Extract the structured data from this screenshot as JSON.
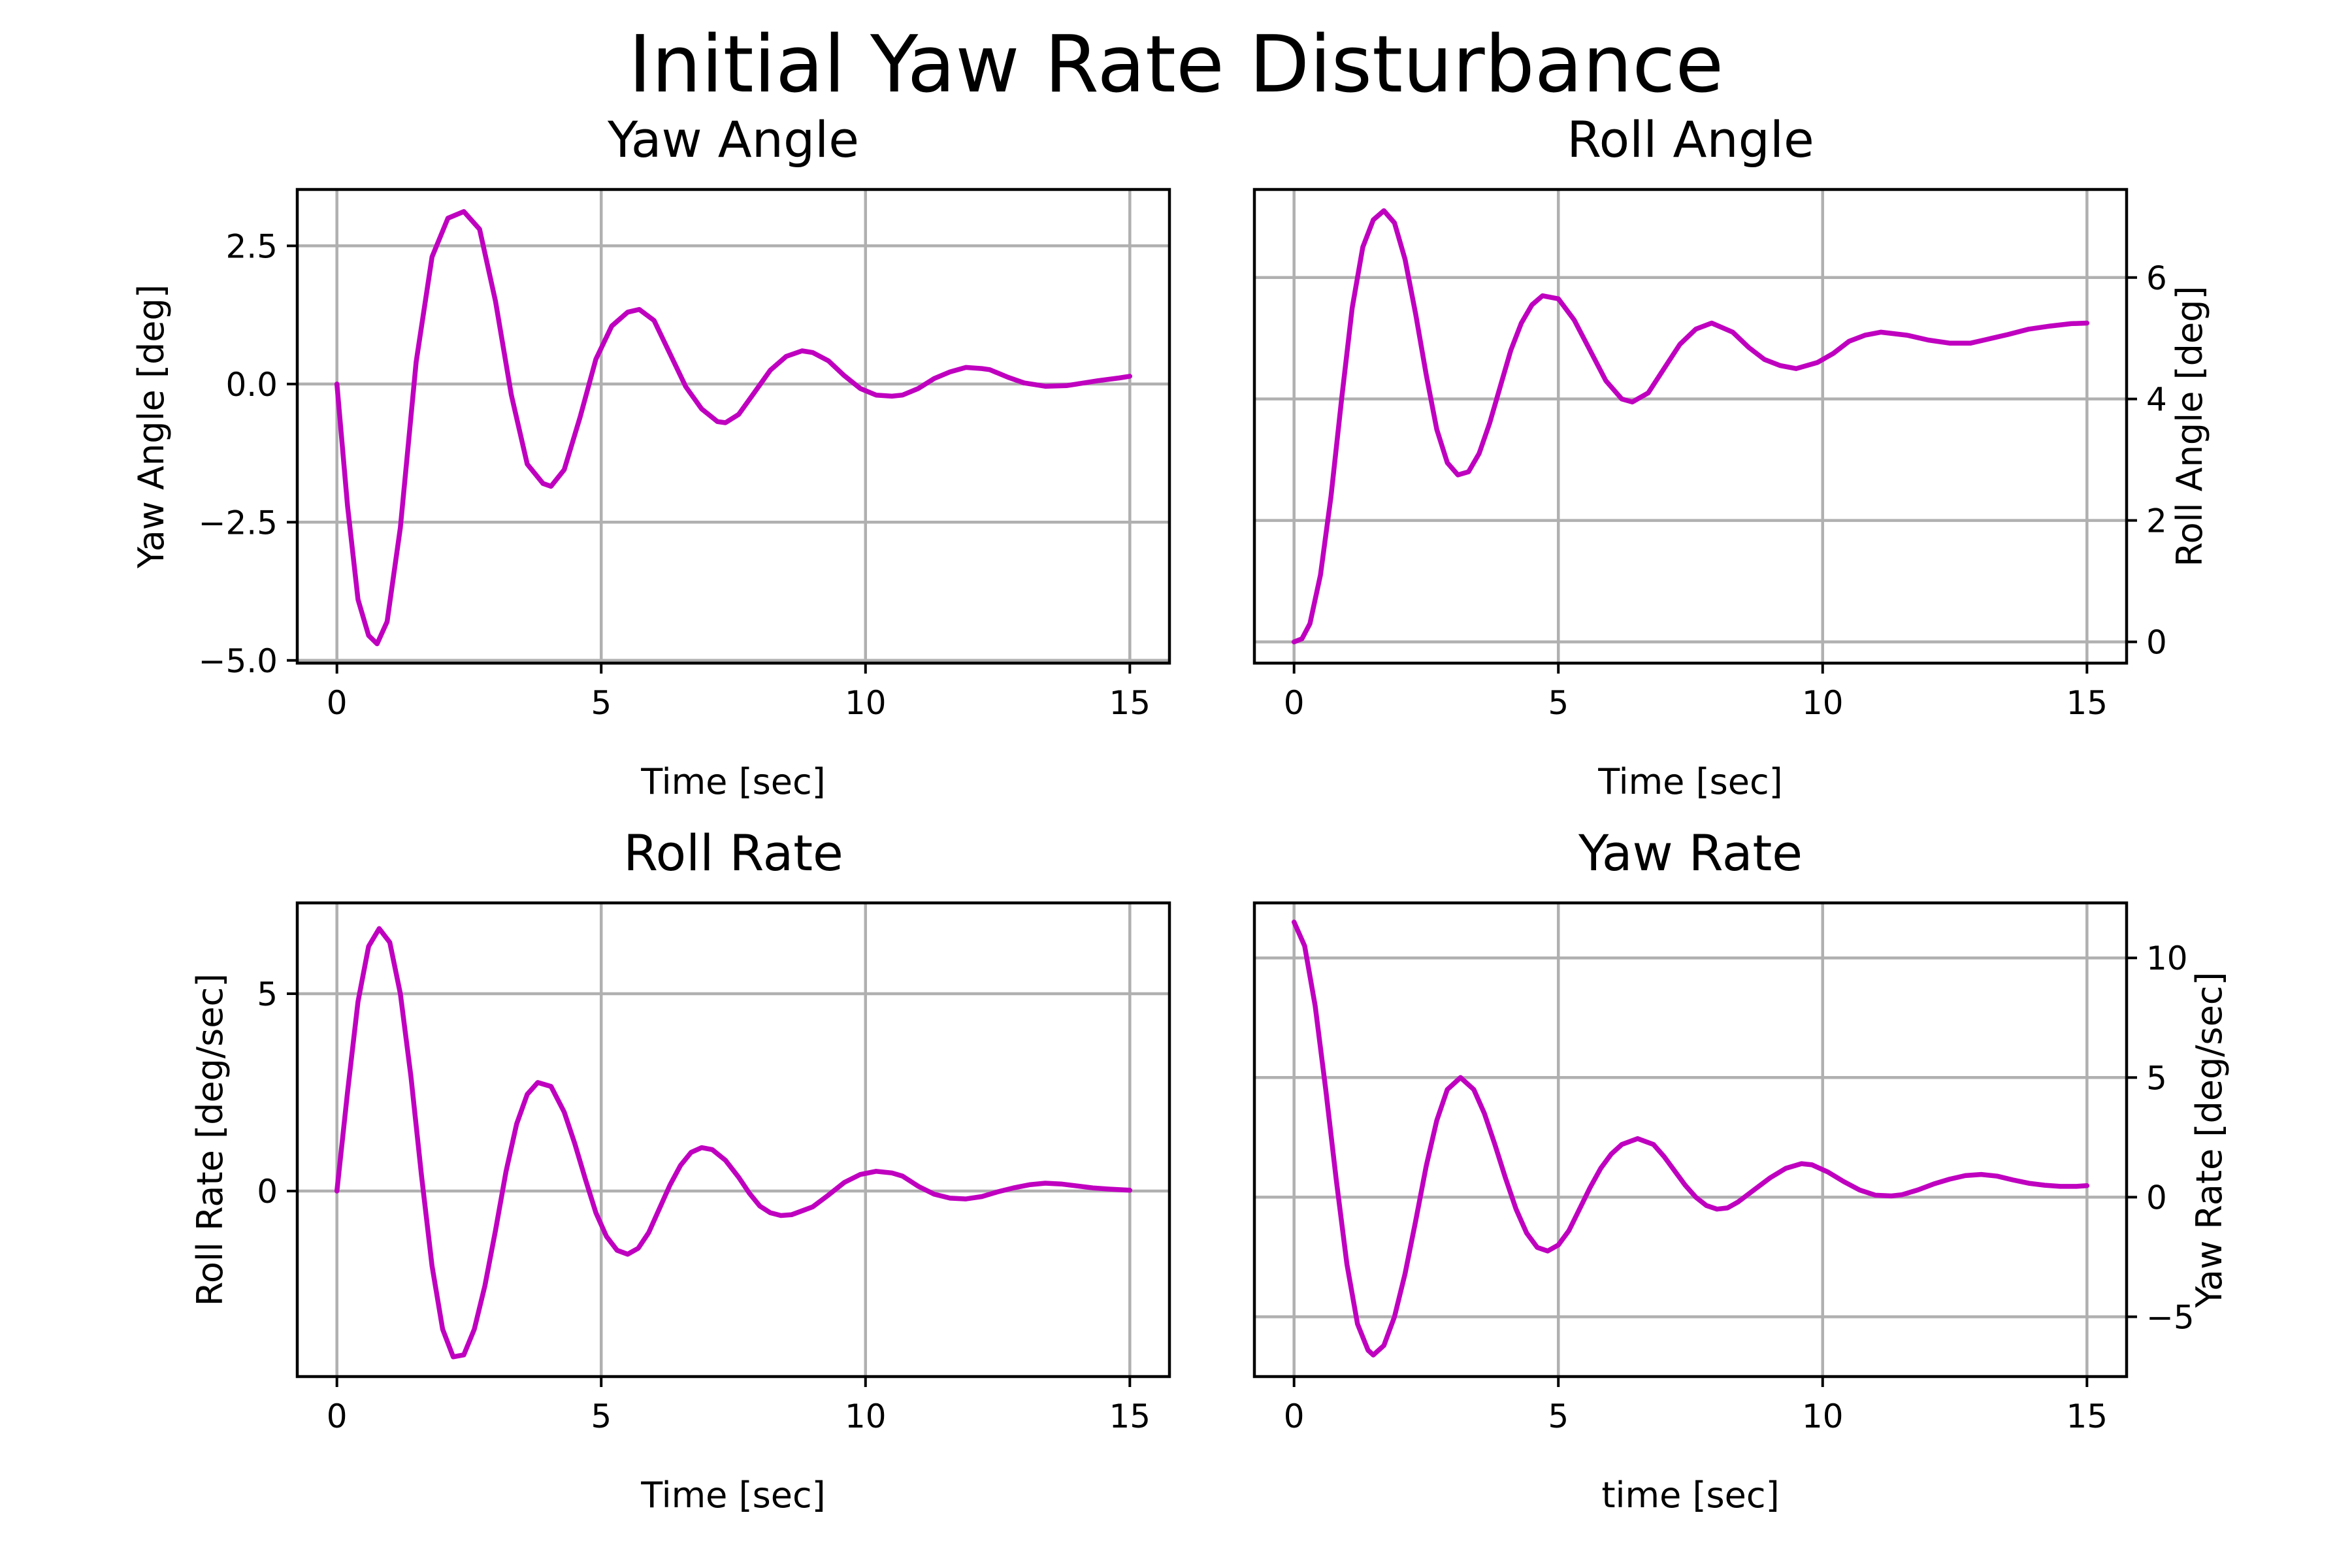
{
  "figure": {
    "title": "Initial Yaw Rate Disturbance",
    "line_color": "#bf00bf",
    "grid_color": "#b0b0b0"
  },
  "chart_data": [
    {
      "type": "line",
      "title": "Yaw Angle",
      "xlabel": "Time [sec]",
      "ylabel": "Yaw Angle [deg]",
      "xlim": [
        -0.75,
        15.75
      ],
      "ylim": [
        -5.05,
        3.52
      ],
      "xticks": [
        0,
        5,
        10,
        15
      ],
      "xtick_labels": [
        "0",
        "5",
        "10",
        "15"
      ],
      "yticks": [
        -5.0,
        -2.5,
        0.0,
        2.5
      ],
      "ytick_labels": [
        "−5.0",
        "−2.5",
        "0.0",
        "2.5"
      ],
      "yaxis_side": "left",
      "grid": true,
      "x": [
        0,
        0.2,
        0.4,
        0.6,
        0.76,
        0.95,
        1.2,
        1.5,
        1.8,
        2.1,
        2.4,
        2.7,
        3.0,
        3.3,
        3.6,
        3.9,
        4.05,
        4.3,
        4.6,
        4.9,
        5.2,
        5.5,
        5.72,
        6.0,
        6.3,
        6.6,
        6.9,
        7.2,
        7.35,
        7.6,
        7.9,
        8.2,
        8.5,
        8.8,
        9.0,
        9.3,
        9.6,
        9.9,
        10.2,
        10.5,
        10.7,
        11.0,
        11.3,
        11.6,
        11.9,
        12.2,
        12.35,
        12.7,
        13.0,
        13.4,
        13.8,
        14.0,
        14.4,
        14.8,
        15.0
      ],
      "series": [
        {
          "values": [
            0.0,
            -2.2,
            -3.9,
            -4.55,
            -4.7,
            -4.3,
            -2.6,
            0.4,
            2.3,
            3.0,
            3.12,
            2.8,
            1.5,
            -0.2,
            -1.45,
            -1.8,
            -1.85,
            -1.55,
            -0.6,
            0.45,
            1.05,
            1.3,
            1.35,
            1.15,
            0.55,
            -0.05,
            -0.45,
            -0.68,
            -0.7,
            -0.55,
            -0.15,
            0.25,
            0.5,
            0.6,
            0.57,
            0.42,
            0.15,
            -0.08,
            -0.2,
            -0.22,
            -0.2,
            -0.08,
            0.1,
            0.22,
            0.3,
            0.28,
            0.26,
            0.12,
            0.02,
            -0.04,
            -0.03,
            0.0,
            0.06,
            0.11,
            0.14
          ]
        }
      ]
    },
    {
      "type": "line",
      "title": "Roll Angle",
      "xlabel": "Time [sec]",
      "ylabel": "Roll Angle [deg]",
      "xlim": [
        -0.75,
        15.75
      ],
      "ylim": [
        -0.35,
        7.45
      ],
      "xticks": [
        0,
        5,
        10,
        15
      ],
      "xtick_labels": [
        "0",
        "5",
        "10",
        "15"
      ],
      "yticks": [
        0,
        2,
        4,
        6
      ],
      "ytick_labels": [
        "0",
        "2",
        "4",
        "6"
      ],
      "yaxis_side": "right",
      "grid": true,
      "x": [
        0,
        0.15,
        0.3,
        0.5,
        0.7,
        0.9,
        1.1,
        1.3,
        1.5,
        1.7,
        1.9,
        2.1,
        2.3,
        2.5,
        2.7,
        2.9,
        3.1,
        3.3,
        3.5,
        3.7,
        3.9,
        4.1,
        4.3,
        4.5,
        4.7,
        5.0,
        5.3,
        5.6,
        5.9,
        6.2,
        6.4,
        6.7,
        7.0,
        7.3,
        7.6,
        7.9,
        8.3,
        8.6,
        8.9,
        9.2,
        9.5,
        9.9,
        10.2,
        10.5,
        10.8,
        11.1,
        11.6,
        12.0,
        12.4,
        12.8,
        13.1,
        13.5,
        13.9,
        14.3,
        14.7,
        15.0
      ],
      "series": [
        {
          "values": [
            0.0,
            0.05,
            0.3,
            1.1,
            2.4,
            4.0,
            5.5,
            6.5,
            6.95,
            7.1,
            6.9,
            6.3,
            5.4,
            4.4,
            3.5,
            2.95,
            2.75,
            2.8,
            3.1,
            3.6,
            4.2,
            4.8,
            5.25,
            5.55,
            5.7,
            5.65,
            5.3,
            4.8,
            4.3,
            4.0,
            3.95,
            4.1,
            4.5,
            4.9,
            5.15,
            5.25,
            5.1,
            4.85,
            4.65,
            4.55,
            4.5,
            4.6,
            4.75,
            4.95,
            5.05,
            5.1,
            5.05,
            4.97,
            4.92,
            4.92,
            4.98,
            5.06,
            5.15,
            5.2,
            5.24,
            5.25
          ]
        }
      ]
    },
    {
      "type": "line",
      "title": "Roll Rate",
      "xlabel": "Time [sec]",
      "ylabel": "Roll Rate [deg/sec]",
      "xlim": [
        -0.75,
        15.75
      ],
      "ylim": [
        -4.7,
        7.3
      ],
      "xticks": [
        0,
        5,
        10,
        15
      ],
      "xtick_labels": [
        "0",
        "5",
        "10",
        "15"
      ],
      "yticks": [
        0,
        5
      ],
      "ytick_labels": [
        "0",
        "5"
      ],
      "yaxis_side": "left",
      "grid": true,
      "x": [
        0,
        0.2,
        0.4,
        0.6,
        0.8,
        1.0,
        1.2,
        1.4,
        1.6,
        1.8,
        2.0,
        2.2,
        2.4,
        2.6,
        2.8,
        3.0,
        3.2,
        3.4,
        3.6,
        3.8,
        4.05,
        4.3,
        4.5,
        4.7,
        4.9,
        5.1,
        5.3,
        5.5,
        5.7,
        5.9,
        6.1,
        6.3,
        6.5,
        6.7,
        6.9,
        7.1,
        7.35,
        7.6,
        7.8,
        8.0,
        8.2,
        8.4,
        8.6,
        8.8,
        9.0,
        9.3,
        9.6,
        9.9,
        10.2,
        10.5,
        10.7,
        11.0,
        11.3,
        11.6,
        11.9,
        12.2,
        12.5,
        12.8,
        13.1,
        13.4,
        13.7,
        14.0,
        14.3,
        14.6,
        15.0
      ],
      "series": [
        {
          "values": [
            0.0,
            2.5,
            4.8,
            6.2,
            6.65,
            6.3,
            5.0,
            2.9,
            0.4,
            -1.9,
            -3.5,
            -4.2,
            -4.15,
            -3.5,
            -2.4,
            -1.0,
            0.5,
            1.7,
            2.45,
            2.75,
            2.65,
            2.0,
            1.2,
            0.3,
            -0.55,
            -1.15,
            -1.5,
            -1.6,
            -1.45,
            -1.05,
            -0.45,
            0.15,
            0.65,
            0.98,
            1.1,
            1.05,
            0.78,
            0.35,
            -0.05,
            -0.38,
            -0.55,
            -0.62,
            -0.6,
            -0.5,
            -0.4,
            -0.1,
            0.22,
            0.42,
            0.5,
            0.46,
            0.38,
            0.12,
            -0.08,
            -0.18,
            -0.2,
            -0.14,
            -0.02,
            0.08,
            0.16,
            0.2,
            0.18,
            0.13,
            0.08,
            0.05,
            0.02
          ]
        }
      ]
    },
    {
      "type": "line",
      "title": "Yaw Rate",
      "xlabel": "time [sec]",
      "ylabel": "Yaw Rate [deg/sec]",
      "xlim": [
        -0.75,
        15.75
      ],
      "ylim": [
        -7.5,
        12.3
      ],
      "xticks": [
        0,
        5,
        10,
        15
      ],
      "xtick_labels": [
        "0",
        "5",
        "10",
        "15"
      ],
      "yticks": [
        -5,
        0,
        5,
        10
      ],
      "ytick_labels": [
        "−5",
        "0",
        "5",
        "10"
      ],
      "yaxis_side": "right",
      "grid": true,
      "x": [
        0,
        0.2,
        0.4,
        0.6,
        0.8,
        1.0,
        1.2,
        1.4,
        1.5,
        1.7,
        1.9,
        2.1,
        2.3,
        2.5,
        2.7,
        2.9,
        3.15,
        3.4,
        3.6,
        3.8,
        4.0,
        4.2,
        4.4,
        4.6,
        4.8,
        5.0,
        5.2,
        5.4,
        5.6,
        5.8,
        6.0,
        6.2,
        6.5,
        6.8,
        7.0,
        7.2,
        7.4,
        7.6,
        7.8,
        8.0,
        8.2,
        8.4,
        8.7,
        9.0,
        9.3,
        9.6,
        9.8,
        10.1,
        10.4,
        10.7,
        11.0,
        11.3,
        11.5,
        11.8,
        12.1,
        12.4,
        12.7,
        13.0,
        13.3,
        13.6,
        13.9,
        14.2,
        14.5,
        14.8,
        15.0
      ],
      "series": [
        {
          "values": [
            11.5,
            10.5,
            8.0,
            4.5,
            0.7,
            -2.8,
            -5.3,
            -6.4,
            -6.6,
            -6.2,
            -5.0,
            -3.2,
            -1.0,
            1.3,
            3.2,
            4.5,
            5.0,
            4.5,
            3.5,
            2.2,
            0.8,
            -0.5,
            -1.5,
            -2.1,
            -2.25,
            -2.0,
            -1.4,
            -0.5,
            0.4,
            1.2,
            1.8,
            2.2,
            2.45,
            2.2,
            1.7,
            1.1,
            0.5,
            0.0,
            -0.35,
            -0.5,
            -0.45,
            -0.2,
            0.3,
            0.8,
            1.2,
            1.4,
            1.35,
            1.05,
            0.65,
            0.3,
            0.08,
            0.05,
            0.1,
            0.3,
            0.55,
            0.75,
            0.9,
            0.95,
            0.88,
            0.72,
            0.58,
            0.5,
            0.45,
            0.45,
            0.48
          ]
        }
      ]
    }
  ]
}
